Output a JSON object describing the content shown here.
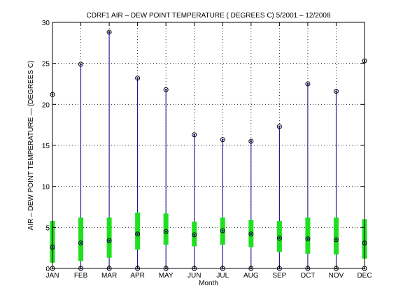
{
  "chart_data": {
    "type": "box",
    "title": "CDRF1  AIR – DEW POINT TEMPERATURE ( DEGREES C) 5/2001 – 12/2008",
    "xlabel": "Month",
    "ylabel": "AIR – DEW POINT TEMPERATURE  —  (DEGREES C)",
    "categories": [
      "JAN",
      "FEB",
      "MAR",
      "APR",
      "MAY",
      "JUN",
      "JUL",
      "AUG",
      "SEP",
      "OCT",
      "NOV",
      "DEC"
    ],
    "ylim": [
      0,
      30
    ],
    "yticks": [
      0,
      5,
      10,
      15,
      20,
      25,
      30
    ],
    "grid": true,
    "min": [
      0,
      0,
      0,
      0,
      0,
      0,
      0,
      0,
      0,
      0,
      0,
      0
    ],
    "max": [
      21.2,
      24.9,
      28.8,
      23.2,
      21.8,
      16.3,
      15.7,
      15.5,
      17.3,
      22.5,
      21.6,
      25.3
    ],
    "q1": [
      0.7,
      0.9,
      1.3,
      2.3,
      2.9,
      2.7,
      2.9,
      2.6,
      2.0,
      1.8,
      1.7,
      1.2
    ],
    "q3": [
      5.8,
      6.2,
      6.2,
      6.8,
      6.7,
      5.7,
      6.2,
      5.9,
      5.8,
      6.2,
      6.2,
      6.0
    ],
    "median": [
      2.6,
      3.1,
      3.4,
      4.2,
      4.5,
      4.1,
      4.6,
      4.2,
      3.7,
      3.6,
      3.5,
      3.1
    ],
    "colors": {
      "whisker": "#00008b",
      "box": "#1fe01f",
      "marker": "#000000"
    }
  }
}
